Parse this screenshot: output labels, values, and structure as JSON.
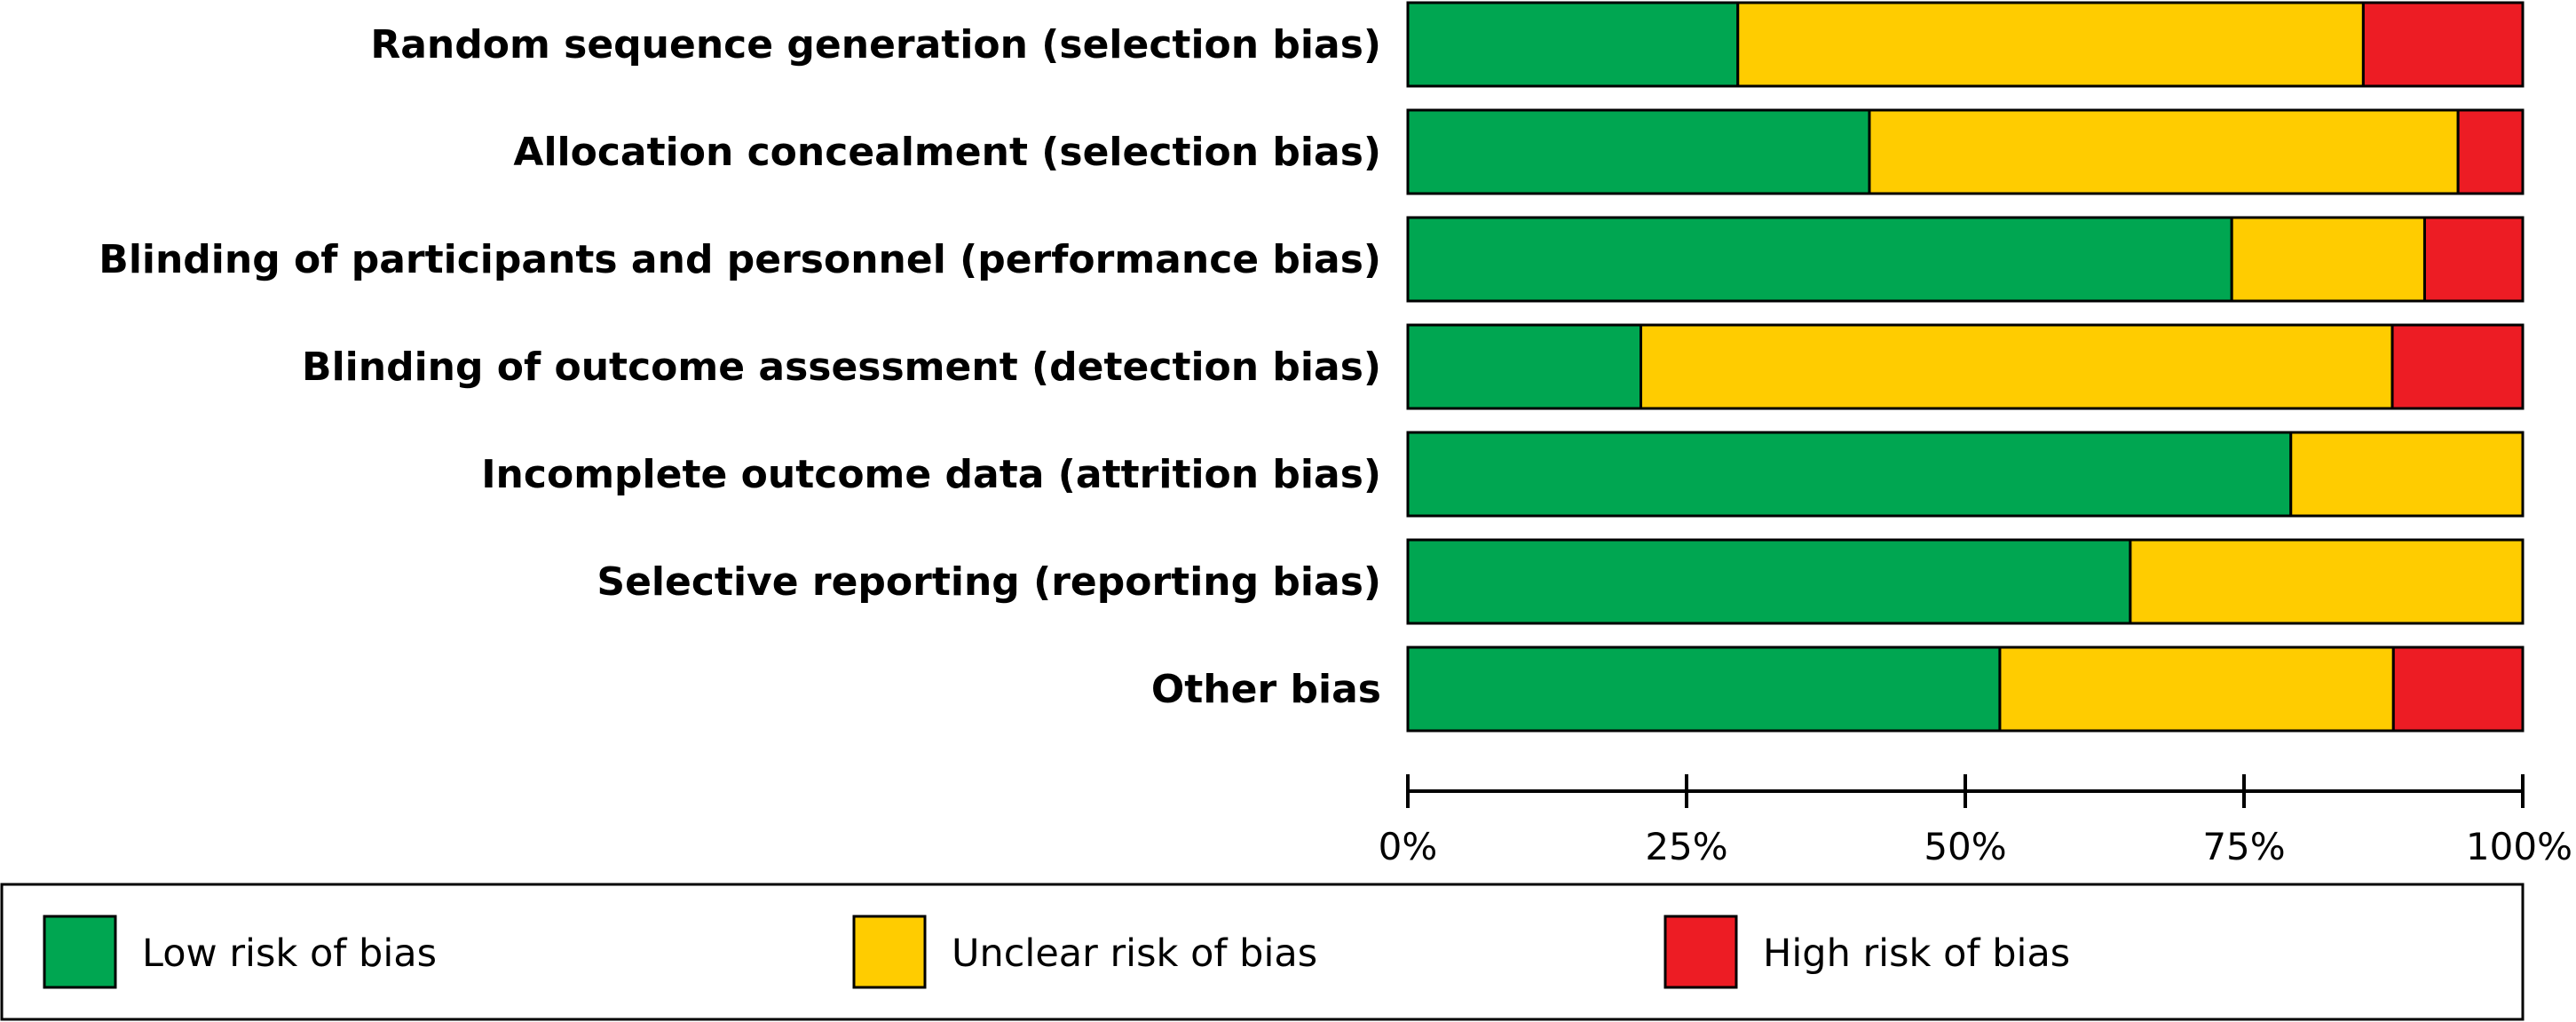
{
  "chart_data": {
    "type": "bar",
    "stacked": true,
    "orientation": "horizontal",
    "categories": [
      "Random sequence generation (selection bias)",
      "Allocation concealment (selection bias)",
      "Blinding of participants and personnel (performance bias)",
      "Blinding of outcome assessment (detection bias)",
      "Incomplete outcome data (attrition bias)",
      "Selective reporting (reporting bias)",
      "Other bias"
    ],
    "series": [
      {
        "name": "Low risk of bias",
        "color": "#00A651",
        "values": [
          29.6,
          41.4,
          73.9,
          20.9,
          79.2,
          64.8,
          53.1
        ]
      },
      {
        "name": "Unclear risk of bias",
        "color": "#FFCC00",
        "values": [
          56.1,
          52.8,
          17.3,
          67.4,
          20.8,
          35.2,
          35.3
        ]
      },
      {
        "name": "High risk of bias",
        "color": "#ED1C24",
        "values": [
          14.3,
          5.8,
          8.8,
          11.7,
          0,
          0,
          11.6
        ]
      }
    ],
    "xticks": [
      "0%",
      "25%",
      "50%",
      "75%",
      "100%"
    ],
    "xlim": [
      0,
      100
    ],
    "legend_position": "bottom"
  }
}
